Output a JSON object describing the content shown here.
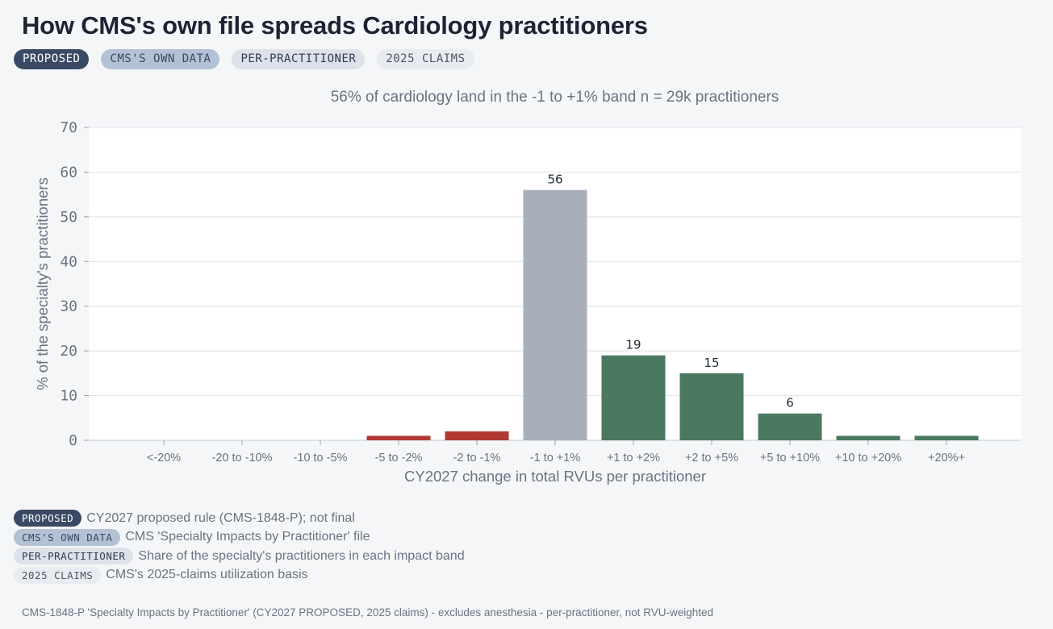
{
  "title": "How CMS's own file spreads Cardiology practitioners",
  "badges": [
    {
      "label": "PROPOSED"
    },
    {
      "label": "CMS'S OWN DATA"
    },
    {
      "label": "PER-PRACTITIONER"
    },
    {
      "label": "2025 CLAIMS"
    }
  ],
  "subtitle": "56% of cardiology land in the -1 to +1% band   n = 29k practitioners",
  "chart_data": {
    "type": "bar",
    "categories": [
      "<-20%",
      "-20 to -10%",
      "-10 to -5%",
      "-5 to -2%",
      "-2 to -1%",
      "-1 to +1%",
      "+1 to +2%",
      "+2 to +5%",
      "+5 to +10%",
      "+10 to +20%",
      "+20%+"
    ],
    "values": [
      0,
      0,
      0,
      1,
      2,
      56,
      19,
      15,
      6,
      1,
      1
    ],
    "value_labels": [
      "",
      "",
      "",
      "",
      "",
      "56",
      "19",
      "15",
      "6",
      "",
      ""
    ],
    "bar_colors": [
      "#b03a33",
      "#b03a33",
      "#b03a33",
      "#b03a33",
      "#b03a33",
      "#a8afbb",
      "#4b7860",
      "#4b7860",
      "#4b7860",
      "#4b7860",
      "#4b7860"
    ],
    "xlabel": "CY2027 change in total RVUs per practitioner",
    "ylabel": "% of the specialty's practitioners",
    "ylim": [
      0,
      70
    ],
    "yticks": [
      0,
      10,
      20,
      30,
      40,
      50,
      60,
      70
    ],
    "grid": true
  },
  "legend": [
    {
      "badge": "PROPOSED",
      "text": "CY2027 proposed rule (CMS-1848-P); not final"
    },
    {
      "badge": "CMS'S OWN DATA",
      "text": "CMS 'Specialty Impacts by Practitioner' file"
    },
    {
      "badge": "PER-PRACTITIONER",
      "text": "Share of the specialty's practitioners in each impact band"
    },
    {
      "badge": "2025 CLAIMS",
      "text": "CMS's 2025-claims utilization basis"
    }
  ],
  "footnote": "CMS-1848-P 'Specialty Impacts by Practitioner' (CY2027 PROPOSED, 2025 claims) - excludes anesthesia - per-practitioner, not RVU-weighted"
}
